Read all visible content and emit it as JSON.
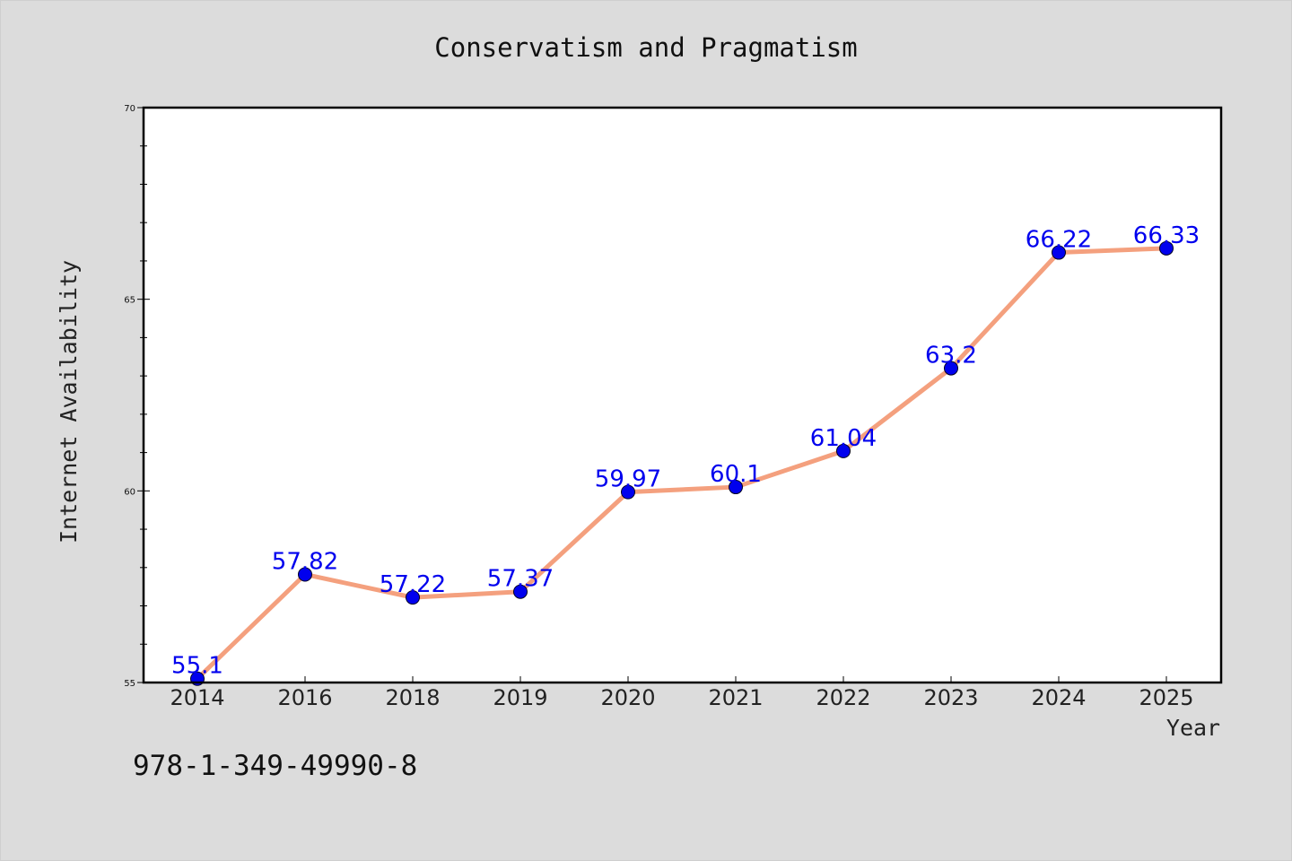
{
  "chart_data": {
    "type": "line",
    "title": "Conservatism and Pragmatism",
    "xlabel": "Year",
    "ylabel": "Internet Availability",
    "categories": [
      "2014",
      "2016",
      "2018",
      "2019",
      "2020",
      "2021",
      "2022",
      "2023",
      "2024",
      "2025"
    ],
    "values": [
      55.1,
      57.82,
      57.22,
      57.37,
      59.97,
      60.1,
      61.04,
      63.2,
      66.22,
      66.33
    ],
    "data_labels": [
      "55.1",
      "57.82",
      "57.22",
      "57.37",
      "59.97",
      "60.1",
      "61.04",
      "63.2",
      "66.22",
      "66.33"
    ],
    "ylim": [
      55,
      70
    ],
    "y_major_ticks": [
      55,
      60,
      65,
      70
    ],
    "y_minor_step": 1,
    "grid": false,
    "legend": "none"
  },
  "footnote": "978-1-349-49990-8",
  "colors": {
    "background": "#dcdcdc",
    "plot_background": "#ffffff",
    "line": "#f4a07e",
    "marker": "#0000ee",
    "data_label": "#0000ee",
    "axes": "#000000"
  }
}
